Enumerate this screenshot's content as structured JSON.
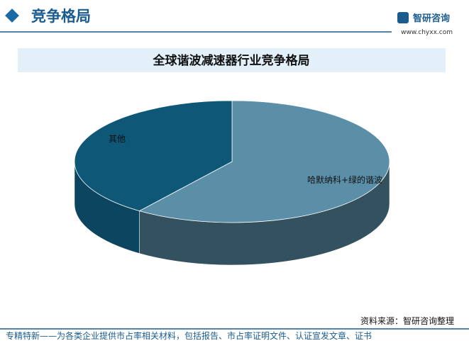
{
  "header": {
    "title": "竞争格局",
    "brand": "智研咨询",
    "url": "www.chyxx.com"
  },
  "chart_data": {
    "type": "pie",
    "title": "全球谐波减速器行业竞争格局",
    "categories": [
      "哈默纳科+绿的谐波",
      "其他"
    ],
    "values": [
      60,
      40
    ],
    "colors": [
      "#5b8fa8",
      "#0e5777"
    ],
    "side_colors": [
      "#34515f",
      "#0b4560"
    ]
  },
  "footer": {
    "source": "资料来源：智研咨询整理",
    "note": "专精特新——为各类企业提供市占率相关材料，包括报告、市占率证明文件、认证宣发文章、证书"
  }
}
